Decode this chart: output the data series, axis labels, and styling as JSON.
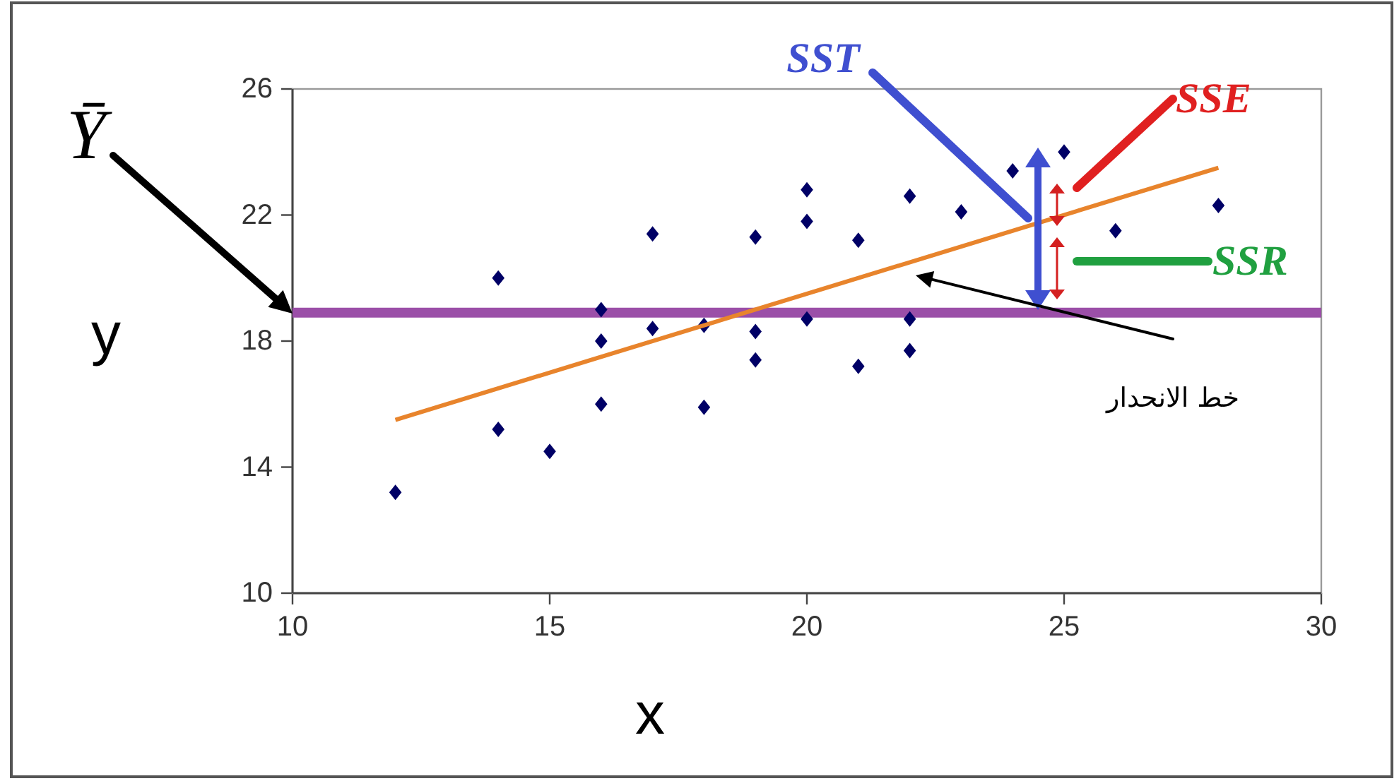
{
  "chart_data": {
    "type": "scatter",
    "xlabel": "x",
    "ylabel": "y",
    "xlim": [
      10,
      30
    ],
    "ylim": [
      10,
      26
    ],
    "xticks": [
      10,
      15,
      20,
      25,
      30
    ],
    "yticks": [
      10,
      14,
      18,
      22,
      26
    ],
    "series": [
      {
        "color": "#000066",
        "marker": "diamond",
        "x": [
          12,
          14,
          14,
          15,
          16,
          16,
          16,
          17,
          17,
          18,
          18,
          19,
          19,
          19,
          20,
          20,
          20,
          21,
          21,
          22,
          22,
          22,
          23,
          24,
          25,
          26,
          28
        ],
        "values": [
          13.2,
          20.0,
          15.2,
          14.5,
          19.0,
          18.0,
          16.0,
          21.4,
          18.4,
          15.9,
          18.5,
          21.3,
          18.3,
          17.4,
          22.8,
          21.8,
          18.7,
          21.2,
          17.2,
          22.6,
          18.7,
          17.7,
          22.1,
          23.4,
          24.0,
          21.5,
          22.3
        ]
      },
      {
        "type": "line",
        "color": "#e8842c",
        "x": [
          12,
          28
        ],
        "values": [
          15.5,
          23.5
        ]
      }
    ],
    "ref_lines": [
      {
        "axis": "y",
        "value": 18.9,
        "color": "#9b4fa8"
      }
    ],
    "annotations": [
      {
        "text": "SST",
        "x": 24.3,
        "y": 21.9
      },
      "SSE",
      "SSR",
      "Ȳ",
      "خط الانحدار"
    ]
  }
}
